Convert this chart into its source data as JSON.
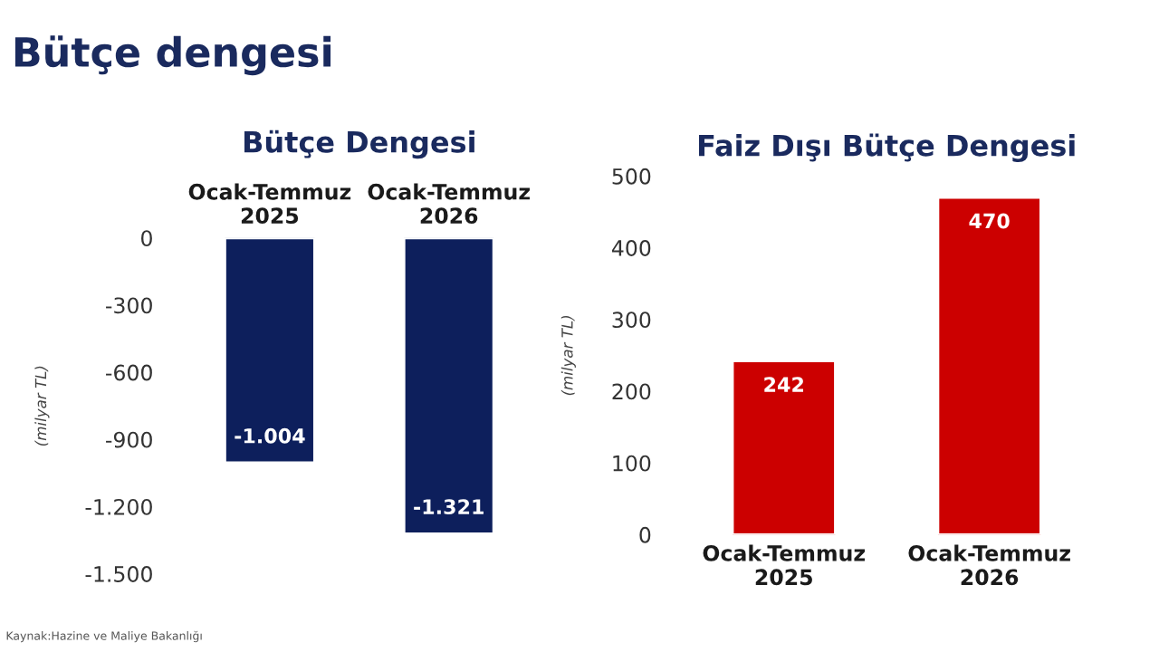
{
  "chart_data": [
    {
      "type": "bar",
      "title": "Bütçe Dengesi",
      "ylabel": "(milyar TL)",
      "categories": [
        "Ocak-Temmuz\n2025",
        "Ocak-Temmuz\n2026"
      ],
      "series": [
        {
          "color": "#0d1f5c",
          "values": [
            -1004,
            -1321
          ],
          "value_labels": [
            "-1.004",
            "-1.321"
          ]
        }
      ],
      "ylim": [
        -1500,
        0
      ],
      "yticks": [
        {
          "value": -1500,
          "label": "-1.500"
        },
        {
          "value": -1200,
          "label": "-1.200"
        },
        -900,
        -600,
        -300,
        0
      ],
      "grid": false,
      "legend": false,
      "annotations": [
        "Bütçe dengesi",
        "Kaynak:Hazine ve Maliye Bakanlığı"
      ]
    },
    {
      "type": "bar",
      "title": "Faiz Dışı Bütçe Dengesi",
      "ylabel": "(milyar TL)",
      "categories": [
        "Ocak-Temmuz\n2025",
        "Ocak-Temmuz\n2026"
      ],
      "series": [
        {
          "color": "#cc0000",
          "values": [
            242,
            470
          ]
        }
      ],
      "data_labels": true,
      "ylim": [
        0,
        500
      ],
      "yticks": [
        0,
        100,
        200,
        300,
        400,
        500
      ],
      "grid": false,
      "legend": false
    }
  ]
}
